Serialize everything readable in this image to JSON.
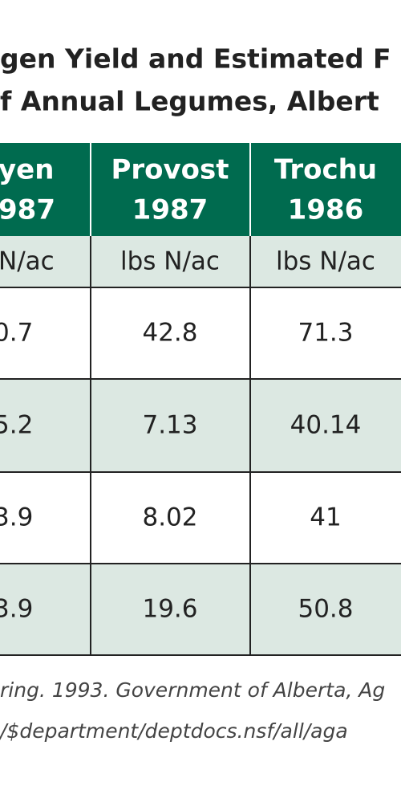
{
  "header": {
    "title_lines": [
      "gen Yield and Estimated F",
      "f Annual Legumes, Albert"
    ]
  },
  "table": {
    "columns": [
      [
        "yen",
        "987"
      ],
      [
        "Provost",
        "1987"
      ],
      [
        "Trochu",
        "1986"
      ]
    ],
    "units": [
      "N/ac",
      "lbs N/ac",
      "lbs N/ac"
    ],
    "rows": [
      [
        "0.7",
        "42.8",
        "71.3"
      ],
      [
        "5.2",
        "7.13",
        "40.14"
      ],
      [
        "3.9",
        "8.02",
        "41"
      ],
      [
        "3.9",
        "19.6",
        "50.8"
      ]
    ]
  },
  "footer": {
    "lines": [
      "ring. 1993. Government of Alberta, Ag",
      "/$department/deptdocs.nsf/all/aga"
    ]
  }
}
